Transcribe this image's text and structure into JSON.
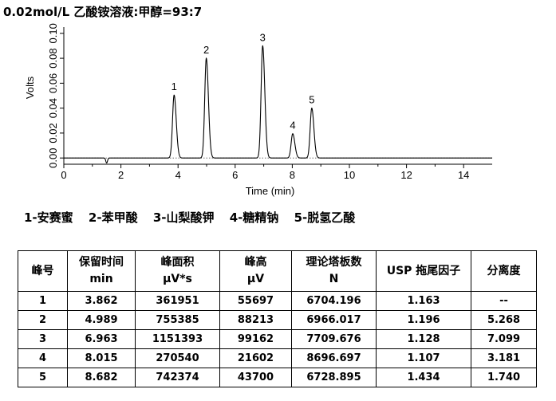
{
  "title": "0.02mol/L 乙酸铵溶液:甲醇=93:7",
  "legend": [
    "1-安赛蜜",
    "2-苯甲酸",
    "3-山梨酸钾",
    "4-糖精钠",
    "5-脱氢乙酸"
  ],
  "chart_data": {
    "type": "line",
    "xlabel": "Time (min)",
    "ylabel": "Volts",
    "xlim": [
      0,
      15
    ],
    "ylim": [
      -0.005,
      0.105
    ],
    "xticks": [
      0,
      2,
      4,
      6,
      8,
      10,
      12,
      14
    ],
    "yticks": [
      "0.00",
      "0.02",
      "0.04",
      "0.06",
      "0.08",
      "0.10"
    ],
    "peaks": [
      {
        "label": "1",
        "time": 3.862,
        "height": 0.0505
      },
      {
        "label": "2",
        "time": 4.989,
        "height": 0.08
      },
      {
        "label": "3",
        "time": 6.963,
        "height": 0.09
      },
      {
        "label": "4",
        "time": 8.015,
        "height": 0.0195
      },
      {
        "label": "5",
        "time": 8.682,
        "height": 0.04
      }
    ],
    "disturbance": {
      "time": 1.5,
      "depth": -0.004
    }
  },
  "table": {
    "headers": [
      [
        "峰号",
        ""
      ],
      [
        "保留时间",
        "min"
      ],
      [
        "峰面积",
        "μV*s"
      ],
      [
        "峰高",
        "μV"
      ],
      [
        "理论塔板数",
        "N"
      ],
      [
        "USP 拖尾因子",
        ""
      ],
      [
        "分离度",
        ""
      ]
    ],
    "rows": [
      [
        "1",
        "3.862",
        "361951",
        "55697",
        "6704.196",
        "1.163",
        "--"
      ],
      [
        "2",
        "4.989",
        "755385",
        "88213",
        "6966.017",
        "1.196",
        "5.268"
      ],
      [
        "3",
        "6.963",
        "1151393",
        "99162",
        "7709.676",
        "1.128",
        "7.099"
      ],
      [
        "4",
        "8.015",
        "270540",
        "21602",
        "8696.697",
        "1.107",
        "3.181"
      ],
      [
        "5",
        "8.682",
        "742374",
        "43700",
        "6728.895",
        "1.434",
        "1.740"
      ]
    ]
  }
}
